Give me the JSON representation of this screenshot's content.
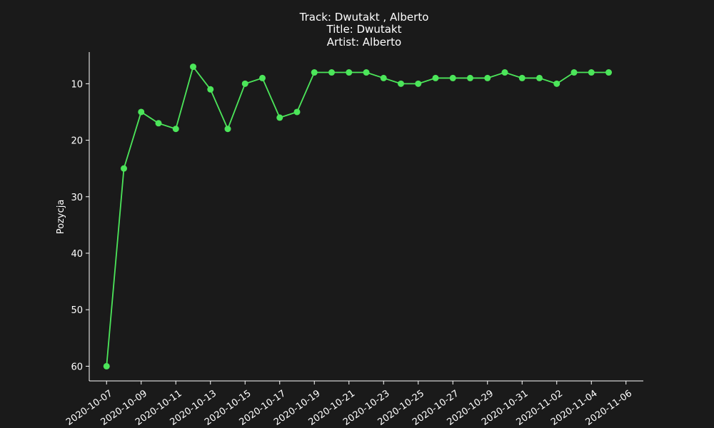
{
  "chart_data": {
    "type": "line",
    "title_lines": [
      "Track:  Dwutakt , Alberto",
      "Title:  Dwutakt",
      "Artist:  Alberto"
    ],
    "xlabel": "",
    "ylabel": "Pozycja",
    "y_inverted": true,
    "ylim": [
      62.6,
      4.4
    ],
    "xlim": [
      "2020-10-06",
      "2020-11-07"
    ],
    "yticks": [
      10,
      20,
      30,
      40,
      50,
      60
    ],
    "xticks": [
      "2020-10-07",
      "2020-10-09",
      "2020-10-11",
      "2020-10-13",
      "2020-10-15",
      "2020-10-17",
      "2020-10-19",
      "2020-10-21",
      "2020-10-23",
      "2020-10-25",
      "2020-10-27",
      "2020-10-29",
      "2020-10-31",
      "2020-11-02",
      "2020-11-04",
      "2020-11-06"
    ],
    "grid": false,
    "line_color": "#4ce65a",
    "axis_color": "#ffffff",
    "background_color": "#1a1a1a",
    "series": [
      {
        "x": [
          "2020-10-07",
          "2020-10-08",
          "2020-10-09",
          "2020-10-10",
          "2020-10-11",
          "2020-10-12",
          "2020-10-13",
          "2020-10-14",
          "2020-10-15",
          "2020-10-16",
          "2020-10-17",
          "2020-10-18",
          "2020-10-19",
          "2020-10-20",
          "2020-10-21",
          "2020-10-22",
          "2020-10-23",
          "2020-10-24",
          "2020-10-25",
          "2020-10-26",
          "2020-10-27",
          "2020-10-28",
          "2020-10-29",
          "2020-10-30",
          "2020-10-31",
          "2020-11-01",
          "2020-11-02",
          "2020-11-03",
          "2020-11-04",
          "2020-11-05"
        ],
        "values": [
          60,
          25,
          15,
          17,
          18,
          7,
          11,
          18,
          10,
          9,
          16,
          15,
          8,
          8,
          8,
          8,
          9,
          10,
          10,
          9,
          9,
          9,
          9,
          8,
          9,
          9,
          10,
          8,
          8,
          8
        ]
      }
    ]
  }
}
